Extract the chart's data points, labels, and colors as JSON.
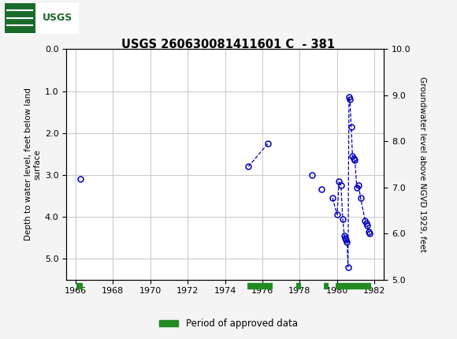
{
  "title": "USGS 260630081411601 C  - 381",
  "ylabel_left": "Depth to water level, feet below land\nsurface",
  "ylabel_right": "Groundwater level above NGVD 1929, feet",
  "ylim_left_top": 0.0,
  "ylim_left_bottom": 5.5,
  "ylim_right_bottom": 5.0,
  "ylim_right_top": 10.0,
  "xlim_left": 1965.5,
  "xlim_right": 1982.5,
  "xticks": [
    1966,
    1968,
    1970,
    1972,
    1974,
    1976,
    1978,
    1980,
    1982
  ],
  "yticks_left": [
    0.0,
    1.0,
    2.0,
    3.0,
    4.0,
    5.0
  ],
  "yticks_right": [
    5.0,
    6.0,
    7.0,
    8.0,
    9.0,
    10.0
  ],
  "segments": [
    [
      {
        "year": 1966.25,
        "depth": 3.1
      }
    ],
    [
      {
        "year": 1975.25,
        "depth": 2.8
      },
      {
        "year": 1976.3,
        "depth": 2.25
      }
    ],
    [
      {
        "year": 1978.65,
        "depth": 3.0
      }
    ],
    [
      {
        "year": 1979.15,
        "depth": 3.35
      }
    ],
    [
      {
        "year": 1979.75,
        "depth": 3.55
      },
      {
        "year": 1980.0,
        "depth": 3.95
      },
      {
        "year": 1980.1,
        "depth": 3.15
      },
      {
        "year": 1980.2,
        "depth": 3.25
      },
      {
        "year": 1980.3,
        "depth": 4.05
      },
      {
        "year": 1980.38,
        "depth": 4.45
      },
      {
        "year": 1980.43,
        "depth": 4.5
      },
      {
        "year": 1980.48,
        "depth": 4.55
      },
      {
        "year": 1980.53,
        "depth": 4.6
      },
      {
        "year": 1980.58,
        "depth": 5.2
      },
      {
        "year": 1980.63,
        "depth": 1.15
      },
      {
        "year": 1980.68,
        "depth": 1.2
      },
      {
        "year": 1980.75,
        "depth": 1.85
      },
      {
        "year": 1980.82,
        "depth": 2.55
      },
      {
        "year": 1980.88,
        "depth": 2.6
      },
      {
        "year": 1980.95,
        "depth": 2.65
      },
      {
        "year": 1981.05,
        "depth": 3.3
      },
      {
        "year": 1981.15,
        "depth": 3.25
      },
      {
        "year": 1981.25,
        "depth": 3.55
      },
      {
        "year": 1981.5,
        "depth": 4.1
      },
      {
        "year": 1981.55,
        "depth": 4.15
      },
      {
        "year": 1981.62,
        "depth": 4.2
      },
      {
        "year": 1981.68,
        "depth": 4.35
      },
      {
        "year": 1981.75,
        "depth": 4.4
      }
    ]
  ],
  "green_bars": [
    {
      "start": 1966.05,
      "end": 1966.4
    },
    {
      "start": 1975.2,
      "end": 1976.55
    },
    {
      "start": 1977.8,
      "end": 1978.05
    },
    {
      "start": 1979.3,
      "end": 1979.55
    },
    {
      "start": 1979.9,
      "end": 1981.8
    }
  ],
  "header_color": "#1a6b2b",
  "plot_bg": "#ffffff",
  "fig_bg": "#f4f4f4",
  "data_color": "#0000bb",
  "green_bar_color": "#228B22",
  "grid_color": "#c8c8c8"
}
